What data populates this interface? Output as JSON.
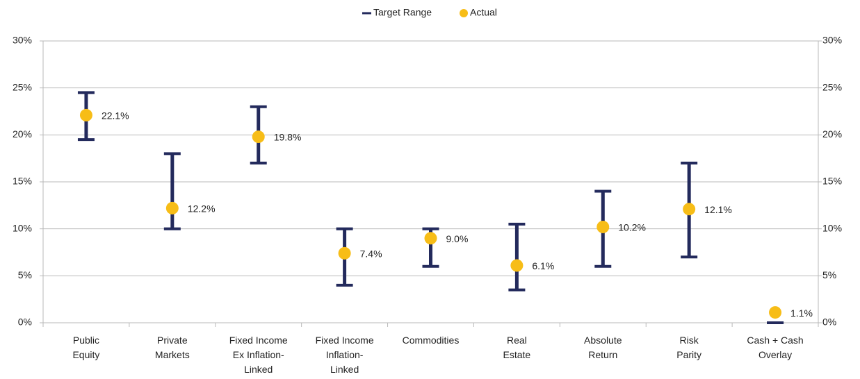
{
  "chart_data": {
    "type": "range_dot",
    "categories": [
      [
        "Public",
        "Equity"
      ],
      [
        "Private",
        "Markets"
      ],
      [
        "Fixed Income",
        "Ex Inflation-",
        "Linked"
      ],
      [
        "Fixed Income",
        "Inflation-",
        "Linked"
      ],
      [
        "Commodities"
      ],
      [
        "Real",
        "Estate"
      ],
      [
        "Absolute",
        "Return"
      ],
      [
        "Risk",
        "Parity"
      ],
      [
        "Cash + Cash",
        "Overlay"
      ]
    ],
    "series": [
      {
        "name": "Target Range",
        "color": "#232a5c",
        "low": [
          19.5,
          10,
          17,
          4,
          6,
          3.5,
          6,
          7,
          0
        ],
        "high": [
          24.5,
          18,
          23,
          10,
          10,
          10.5,
          14,
          17,
          0
        ]
      },
      {
        "name": "Actual",
        "color": "#f7bd17",
        "values": [
          22.1,
          12.2,
          19.8,
          7.4,
          9.0,
          6.1,
          10.2,
          12.1,
          1.1
        ],
        "value_labels": [
          "22.1%",
          "12.2%",
          "19.8%",
          "7.4%",
          "9.0%",
          "6.1%",
          "10.2%",
          "12.1%",
          "1.1%"
        ]
      }
    ],
    "ylim": [
      0,
      30
    ],
    "yticks": [
      {
        "value": 0,
        "label": "0%"
      },
      {
        "value": 5,
        "label": "5%"
      },
      {
        "value": 10,
        "label": "10%"
      },
      {
        "value": 15,
        "label": "15%"
      },
      {
        "value": 20,
        "label": "20%"
      },
      {
        "value": 25,
        "label": "25%"
      },
      {
        "value": 30,
        "label": "30%"
      }
    ],
    "y2lim": [
      0,
      30
    ],
    "y2ticks": [
      {
        "value": 0,
        "label": "0%"
      },
      {
        "value": 5,
        "label": "5%"
      },
      {
        "value": 10,
        "label": "10%"
      },
      {
        "value": 15,
        "label": "15%"
      },
      {
        "value": 20,
        "label": "20%"
      },
      {
        "value": 25,
        "label": "25%"
      },
      {
        "value": 30,
        "label": "30%"
      }
    ],
    "grid": true,
    "legend": "top"
  }
}
